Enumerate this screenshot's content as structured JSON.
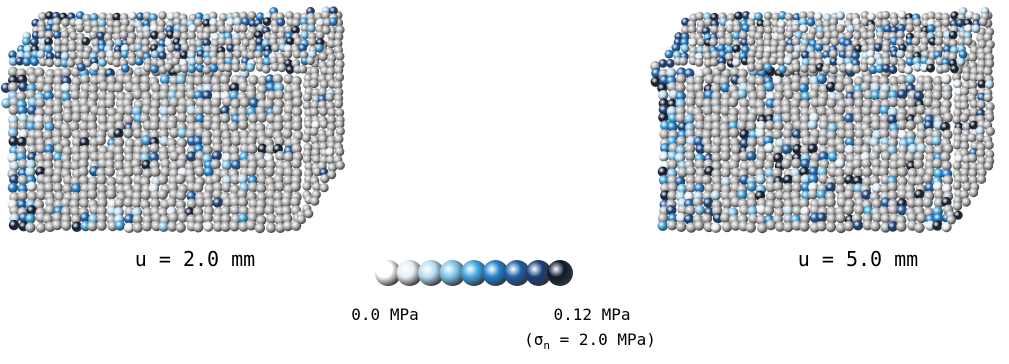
{
  "panels": [
    {
      "label": "u = 2.0 mm"
    },
    {
      "label": "u = 5.0 mm"
    }
  ],
  "legend": {
    "colors": [
      "#ffffff",
      "#e6eef6",
      "#b9dcf4",
      "#7dc3ec",
      "#3ea6e4",
      "#1f80d0",
      "#1b5fab",
      "#17407a",
      "#0d1a2e"
    ],
    "min_label": "0.0 MPa",
    "max_label": "0.12 MPa",
    "note": {
      "open": "(σ",
      "subscript": "n",
      "rest": " = 2.0 MPa)"
    }
  }
}
